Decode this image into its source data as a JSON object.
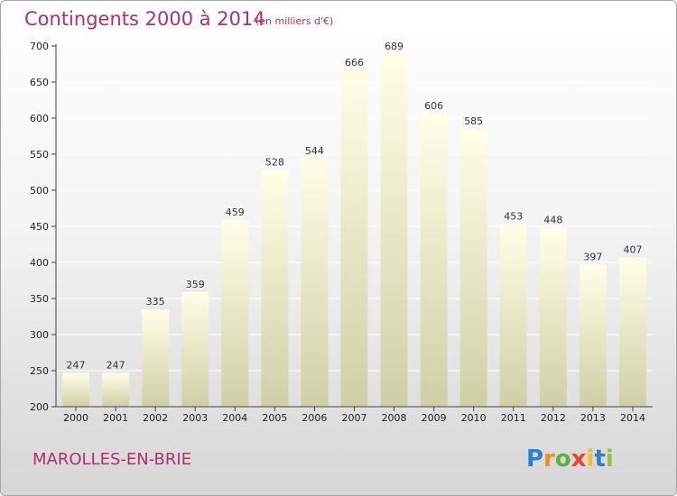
{
  "title": "Contingents 2000 à 2014",
  "subtitle": "(en milliers d'€)",
  "commune": "MAROLLES-EN-BRIE",
  "logo": {
    "letters": [
      "P",
      "r",
      "o",
      "x",
      "i",
      "t",
      "i"
    ],
    "colors": [
      "#2a7fd4",
      "#f28c1c",
      "#5db33a",
      "#e8452c",
      "#f2c21c",
      "#2a7fd4",
      "#8cc63f"
    ]
  },
  "colors": {
    "title": "#b0306a",
    "bar_top": "#ffffe8",
    "bar_bottom": "#cfcfa6",
    "axis": "#444444",
    "grid": "#ffffff"
  },
  "chart_data": {
    "type": "bar",
    "categories": [
      "2000",
      "2001",
      "2002",
      "2003",
      "2004",
      "2005",
      "2006",
      "2007",
      "2008",
      "2009",
      "2010",
      "2011",
      "2012",
      "2013",
      "2014"
    ],
    "values": [
      247,
      247,
      335,
      359,
      459,
      528,
      544,
      666,
      689,
      606,
      585,
      453,
      448,
      397,
      407
    ],
    "ylim": [
      200,
      700
    ],
    "yticks": [
      200,
      250,
      300,
      350,
      400,
      450,
      500,
      550,
      600,
      650,
      700
    ],
    "grid": true,
    "legend": "none"
  }
}
